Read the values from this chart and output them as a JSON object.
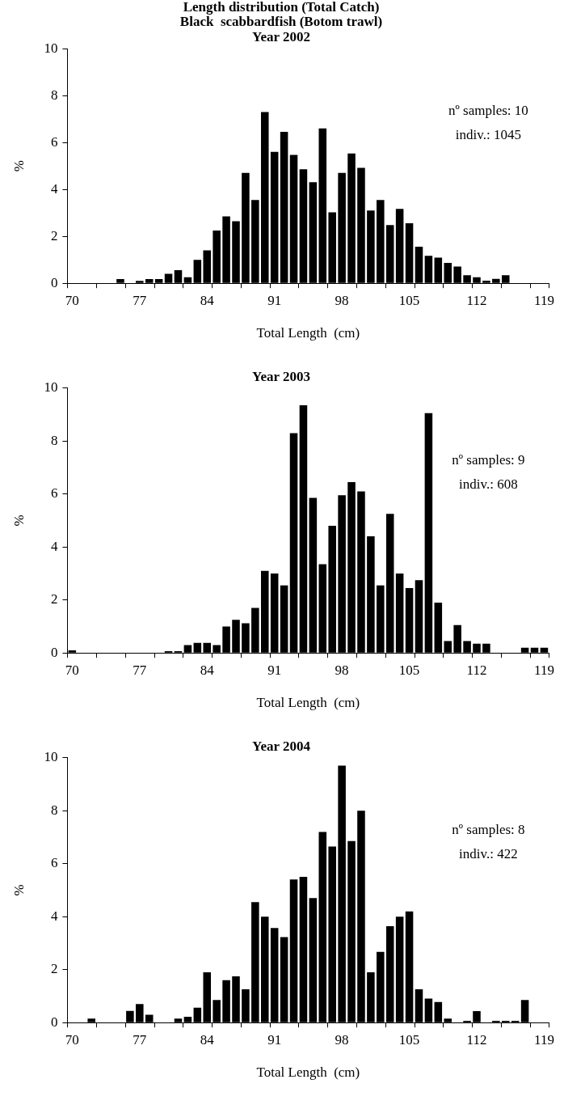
{
  "chart_data": [
    {
      "type": "bar",
      "title": "Length distribution (Total Catch)",
      "subtitle": "Black  scabbardfish (Botom trawl)\nYear 2002",
      "xlabel": "Total Length  (cm)",
      "ylabel": "%",
      "categories": [
        "70",
        null,
        null,
        null,
        null,
        null,
        null,
        "77",
        null,
        null,
        null,
        null,
        null,
        null,
        "84",
        null,
        null,
        null,
        null,
        null,
        null,
        "91",
        null,
        null,
        null,
        null,
        null,
        null,
        "98",
        null,
        null,
        null,
        null,
        null,
        null,
        "105",
        null,
        null,
        null,
        null,
        null,
        null,
        "112",
        null,
        null,
        null,
        null,
        null,
        null,
        "119"
      ],
      "values": [
        0,
        0,
        0,
        0,
        0,
        0.18,
        0,
        0.1,
        0.18,
        0.18,
        0.4,
        0.56,
        0.26,
        1.0,
        1.4,
        2.25,
        2.85,
        2.64,
        4.7,
        3.55,
        7.3,
        5.6,
        6.45,
        5.47,
        4.86,
        4.31,
        6.6,
        3.02,
        4.7,
        5.53,
        4.92,
        3.1,
        3.55,
        2.48,
        3.17,
        2.56,
        1.56,
        1.17,
        1.09,
        0.87,
        0.71,
        0.34,
        0.26,
        0.11,
        0.19,
        0.34,
        0,
        0,
        0,
        0
      ],
      "color": "#000000",
      "ylim": [
        0,
        10
      ],
      "yticks": [
        0,
        2,
        4,
        6,
        8,
        10
      ],
      "grid": false,
      "legend": false,
      "annotations": [
        "nº samples: 10",
        "indiv.: 1045"
      ]
    },
    {
      "type": "bar",
      "title": "Year 2003",
      "xlabel": "Total Length  (cm)",
      "ylabel": "%",
      "categories": [
        "70",
        null,
        null,
        null,
        null,
        null,
        null,
        "77",
        null,
        null,
        null,
        null,
        null,
        null,
        "84",
        null,
        null,
        null,
        null,
        null,
        null,
        "91",
        null,
        null,
        null,
        null,
        null,
        null,
        "98",
        null,
        null,
        null,
        null,
        null,
        null,
        "105",
        null,
        null,
        null,
        null,
        null,
        null,
        "112",
        null,
        null,
        null,
        null,
        null,
        null,
        "119"
      ],
      "values": [
        0.1,
        0,
        0,
        0,
        0,
        0,
        0,
        0,
        0,
        0,
        0.07,
        0.07,
        0.3,
        0.38,
        0.38,
        0.3,
        1.0,
        1.25,
        1.12,
        1.7,
        3.1,
        3.0,
        2.55,
        8.3,
        9.35,
        5.85,
        3.35,
        4.8,
        5.95,
        6.45,
        6.1,
        4.4,
        2.55,
        5.25,
        3.0,
        2.45,
        2.75,
        9.05,
        1.9,
        0.45,
        1.05,
        0.45,
        0.35,
        0.35,
        0,
        0,
        0,
        0.2,
        0.2,
        0.2
      ],
      "color": "#000000",
      "ylim": [
        0,
        10
      ],
      "yticks": [
        0,
        2,
        4,
        6,
        8,
        10
      ],
      "grid": false,
      "legend": false,
      "annotations": [
        "nº samples: 9",
        "indiv.: 608"
      ]
    },
    {
      "type": "bar",
      "title": "Year 2004",
      "xlabel": "Total Length  (cm)",
      "ylabel": "%",
      "categories": [
        "70",
        null,
        null,
        null,
        null,
        null,
        null,
        "77",
        null,
        null,
        null,
        null,
        null,
        null,
        "84",
        null,
        null,
        null,
        null,
        null,
        null,
        "91",
        null,
        null,
        null,
        null,
        null,
        null,
        "98",
        null,
        null,
        null,
        null,
        null,
        null,
        "105",
        null,
        null,
        null,
        null,
        null,
        null,
        "112",
        null,
        null,
        null,
        null,
        null,
        null,
        "119"
      ],
      "values": [
        0,
        0,
        0.15,
        0,
        0,
        0,
        0.44,
        0.7,
        0.3,
        0,
        0,
        0.15,
        0.22,
        0.56,
        1.9,
        0.85,
        1.6,
        1.75,
        1.26,
        4.55,
        4.0,
        3.57,
        3.23,
        5.4,
        5.5,
        4.7,
        7.2,
        6.65,
        9.7,
        6.85,
        8.0,
        1.9,
        2.67,
        3.64,
        4.0,
        4.2,
        1.26,
        0.91,
        0.78,
        0.15,
        0,
        0.07,
        0.43,
        0,
        0.07,
        0.07,
        0.07,
        0.85,
        0,
        0
      ],
      "color": "#000000",
      "ylim": [
        0,
        10
      ],
      "yticks": [
        0,
        2,
        4,
        6,
        8,
        10
      ],
      "grid": false,
      "legend": false,
      "annotations": [
        "nº samples: 8",
        "indiv.: 422"
      ]
    }
  ]
}
